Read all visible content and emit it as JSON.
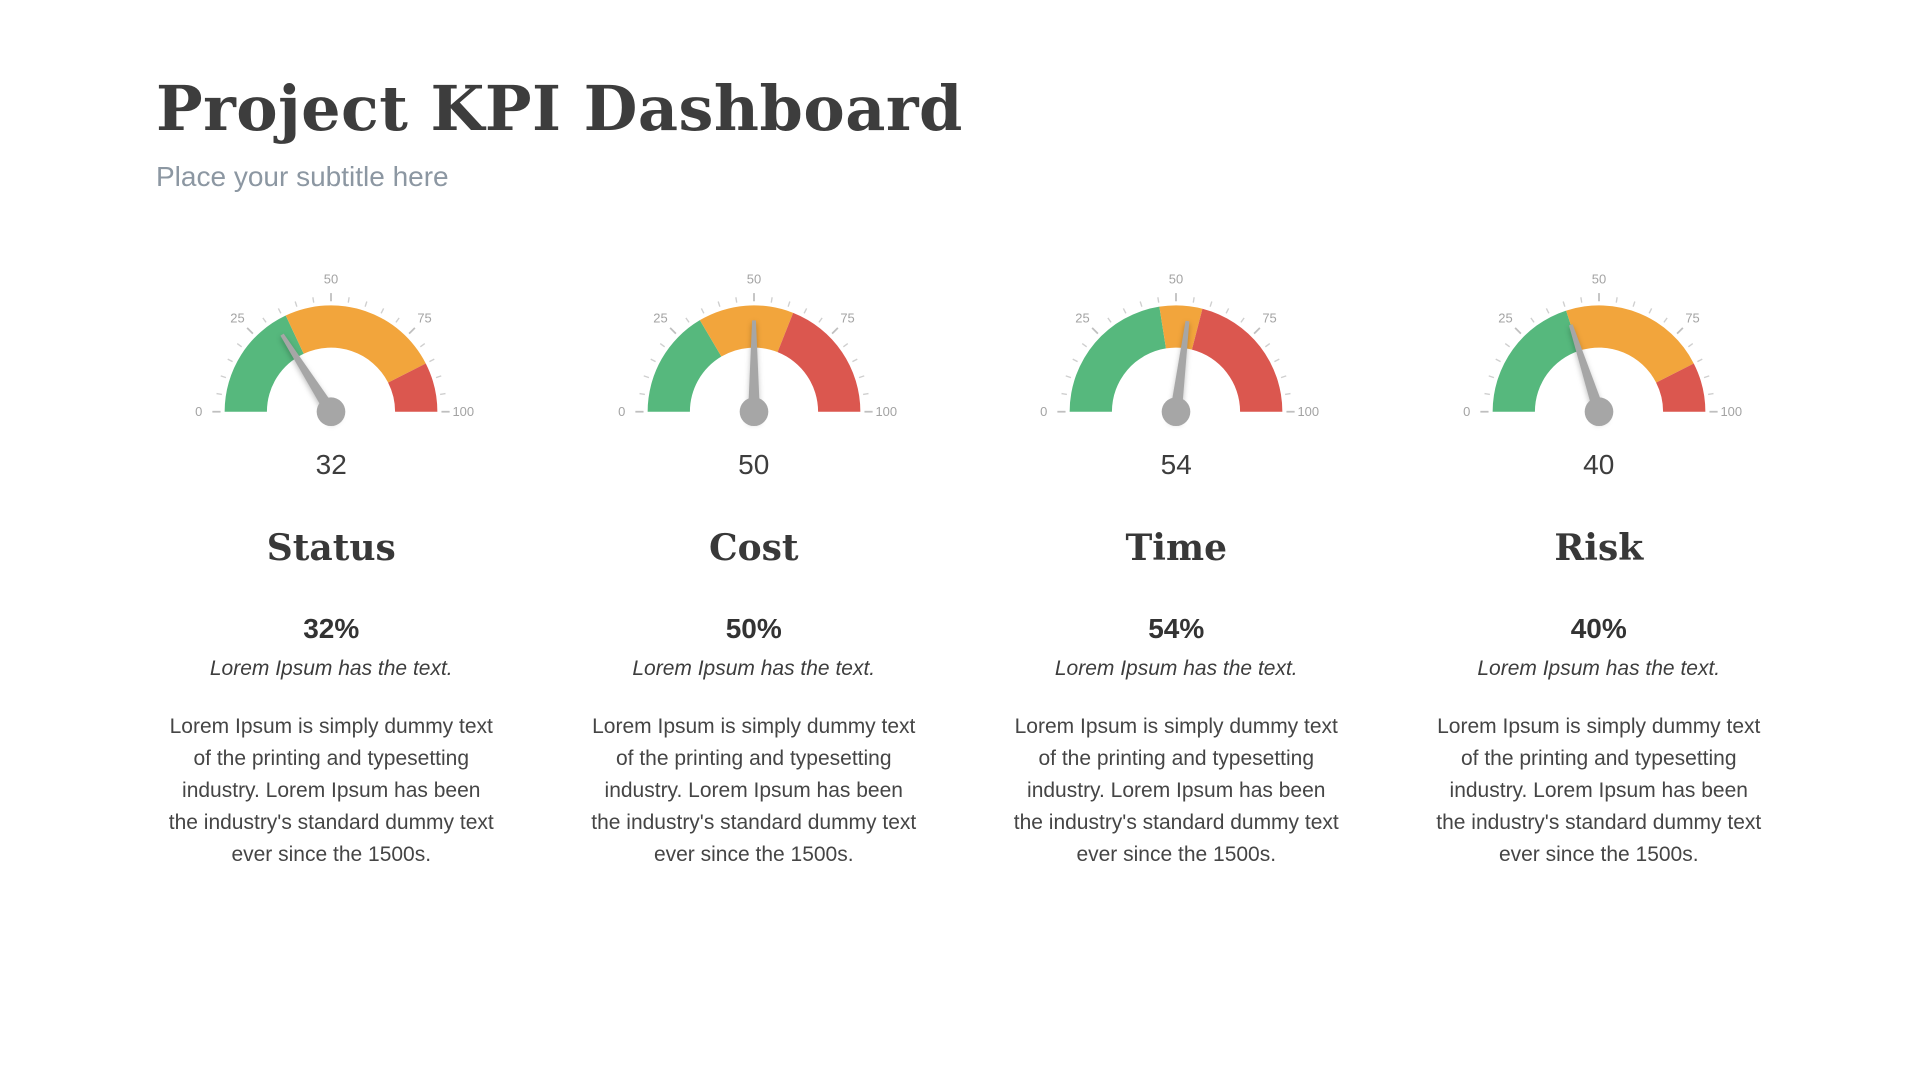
{
  "page": {
    "title": "Project KPI Dashboard",
    "subtitle": "Place your subtitle here"
  },
  "colors": {
    "green": "#56B87D",
    "orange": "#F2A53C",
    "red": "#DB574F",
    "needle": "#A6A6A6",
    "tick": "#CFCFCF",
    "tick_label": "#A3A3A3"
  },
  "chart_data": [
    {
      "type": "gauge",
      "title": "Status",
      "value": 32,
      "min": 0,
      "max": 100,
      "tick_step_minor": 5,
      "tick_labels": [
        0,
        25,
        50,
        75,
        100
      ],
      "zones": [
        {
          "from": 0,
          "to": 36,
          "color": "#56B87D"
        },
        {
          "from": 36,
          "to": 85,
          "color": "#F2A53C"
        },
        {
          "from": 85,
          "to": 100,
          "color": "#DB574F"
        }
      ]
    },
    {
      "type": "gauge",
      "title": "Cost",
      "value": 50,
      "min": 0,
      "max": 100,
      "tick_step_minor": 5,
      "tick_labels": [
        0,
        25,
        50,
        75,
        100
      ],
      "zones": [
        {
          "from": 0,
          "to": 33,
          "color": "#56B87D"
        },
        {
          "from": 33,
          "to": 62,
          "color": "#F2A53C"
        },
        {
          "from": 62,
          "to": 100,
          "color": "#DB574F"
        }
      ]
    },
    {
      "type": "gauge",
      "title": "Time",
      "value": 54,
      "min": 0,
      "max": 100,
      "tick_step_minor": 5,
      "tick_labels": [
        0,
        25,
        50,
        75,
        100
      ],
      "zones": [
        {
          "from": 0,
          "to": 45,
          "color": "#56B87D"
        },
        {
          "from": 45,
          "to": 58,
          "color": "#F2A53C"
        },
        {
          "from": 58,
          "to": 100,
          "color": "#DB574F"
        }
      ]
    },
    {
      "type": "gauge",
      "title": "Risk",
      "value": 40,
      "min": 0,
      "max": 100,
      "tick_step_minor": 5,
      "tick_labels": [
        0,
        25,
        50,
        75,
        100
      ],
      "zones": [
        {
          "from": 0,
          "to": 40,
          "color": "#56B87D"
        },
        {
          "from": 40,
          "to": 85,
          "color": "#F2A53C"
        },
        {
          "from": 85,
          "to": 100,
          "color": "#DB574F"
        }
      ]
    }
  ],
  "cards": [
    {
      "title": "Status",
      "value_label": "32",
      "percent": "32%",
      "caption": "Lorem Ipsum has the text.",
      "body": "Lorem Ipsum is simply dummy text of the printing and typesetting industry. Lorem Ipsum has been the industry's standard dummy text ever since the 1500s."
    },
    {
      "title": "Cost",
      "value_label": "50",
      "percent": "50%",
      "caption": "Lorem Ipsum has the text.",
      "body": "Lorem Ipsum is simply dummy text of the printing and typesetting industry. Lorem Ipsum has been the industry's standard dummy text ever since the 1500s."
    },
    {
      "title": "Time",
      "value_label": "54",
      "percent": "54%",
      "caption": "Lorem Ipsum has the text.",
      "body": "Lorem Ipsum is simply dummy text of the printing and typesetting industry. Lorem Ipsum has been the industry's standard dummy text ever since the 1500s."
    },
    {
      "title": "Risk",
      "value_label": "40",
      "percent": "40%",
      "caption": "Lorem Ipsum has the text.",
      "body": "Lorem Ipsum is simply dummy text of the printing and typesetting industry. Lorem Ipsum has been the industry's standard dummy text ever since the 1500s."
    }
  ]
}
